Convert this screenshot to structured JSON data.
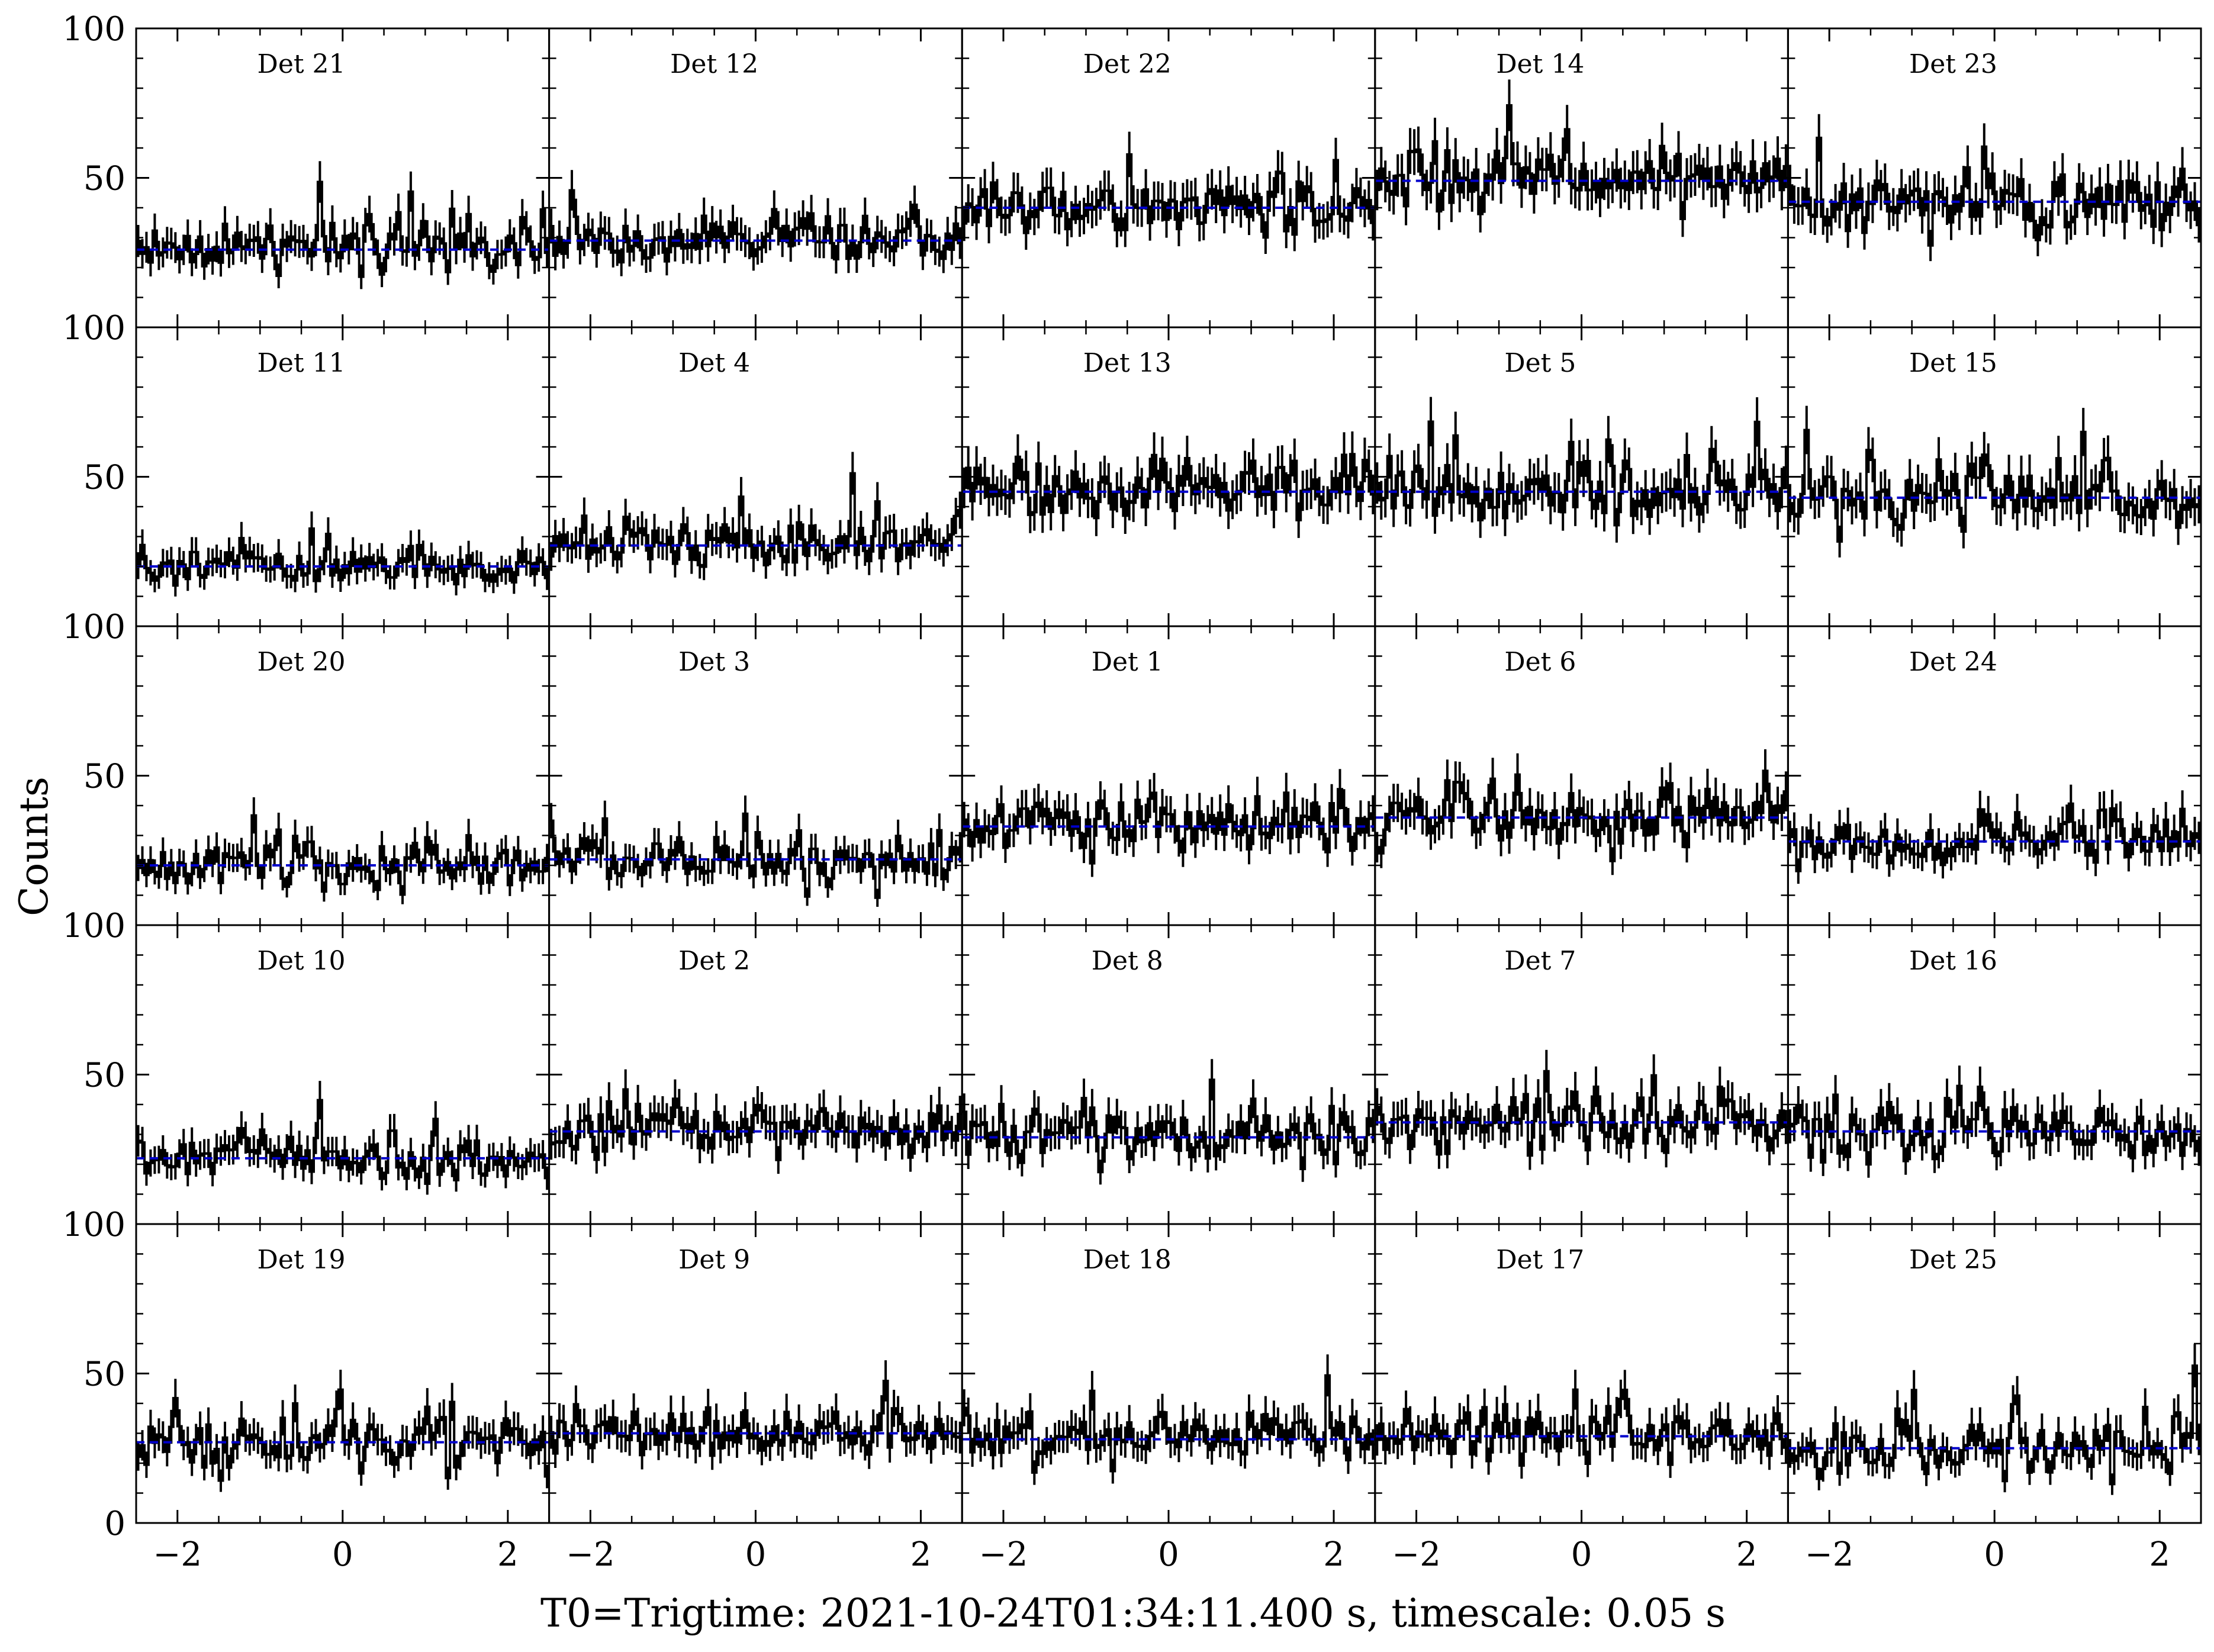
{
  "chart_data": {
    "type": "line",
    "xlabel": "T0=Trigtime: 2021-10-24T01:34:11.400 s, timescale: 0.05 s",
    "ylabel": "Counts",
    "xlim": [
      -2.5,
      2.5
    ],
    "ylim": [
      0,
      100
    ],
    "x_ticks": [
      -2,
      0,
      2
    ],
    "x_tick_labels": [
      "−2",
      "0",
      "2"
    ],
    "y_ticks": [
      0,
      50,
      100
    ],
    "y_tick_labels": [
      "0",
      "50",
      "100"
    ],
    "timescale_s": 0.05,
    "colors": {
      "data": "#000000",
      "background": "#0000cc"
    },
    "panels": [
      {
        "label": "Det 21",
        "background": 26,
        "noise": 4
      },
      {
        "label": "Det 12",
        "background": 29,
        "noise": 4
      },
      {
        "label": "Det 22",
        "background": 40,
        "noise": 5
      },
      {
        "label": "Det 14",
        "background": 49,
        "noise": 5
      },
      {
        "label": "Det 23",
        "background": 42,
        "noise": 5
      },
      {
        "label": "Det 11",
        "background": 20,
        "noise": 3
      },
      {
        "label": "Det 4",
        "background": 27,
        "noise": 4
      },
      {
        "label": "Det 13",
        "background": 45,
        "noise": 5
      },
      {
        "label": "Det 5",
        "background": 45,
        "noise": 5
      },
      {
        "label": "Det 15",
        "background": 43,
        "noise": 5
      },
      {
        "label": "Det 20",
        "background": 20,
        "noise": 4
      },
      {
        "label": "Det 3",
        "background": 22,
        "noise": 4
      },
      {
        "label": "Det 1",
        "background": 33,
        "noise": 5
      },
      {
        "label": "Det 6",
        "background": 36,
        "noise": 5
      },
      {
        "label": "Det 24",
        "background": 28,
        "noise": 4
      },
      {
        "label": "Det 10",
        "background": 22,
        "noise": 4
      },
      {
        "label": "Det 2",
        "background": 31,
        "noise": 5
      },
      {
        "label": "Det 8",
        "background": 29,
        "noise": 5
      },
      {
        "label": "Det 7",
        "background": 34,
        "noise": 5
      },
      {
        "label": "Det 16",
        "background": 31,
        "noise": 5
      },
      {
        "label": "Det 19",
        "background": 27,
        "noise": 5
      },
      {
        "label": "Det 9",
        "background": 30,
        "noise": 4
      },
      {
        "label": "Det 18",
        "background": 28,
        "noise": 4
      },
      {
        "label": "Det 17",
        "background": 29,
        "noise": 4
      },
      {
        "label": "Det 25",
        "background": 25,
        "noise": 5
      }
    ]
  }
}
